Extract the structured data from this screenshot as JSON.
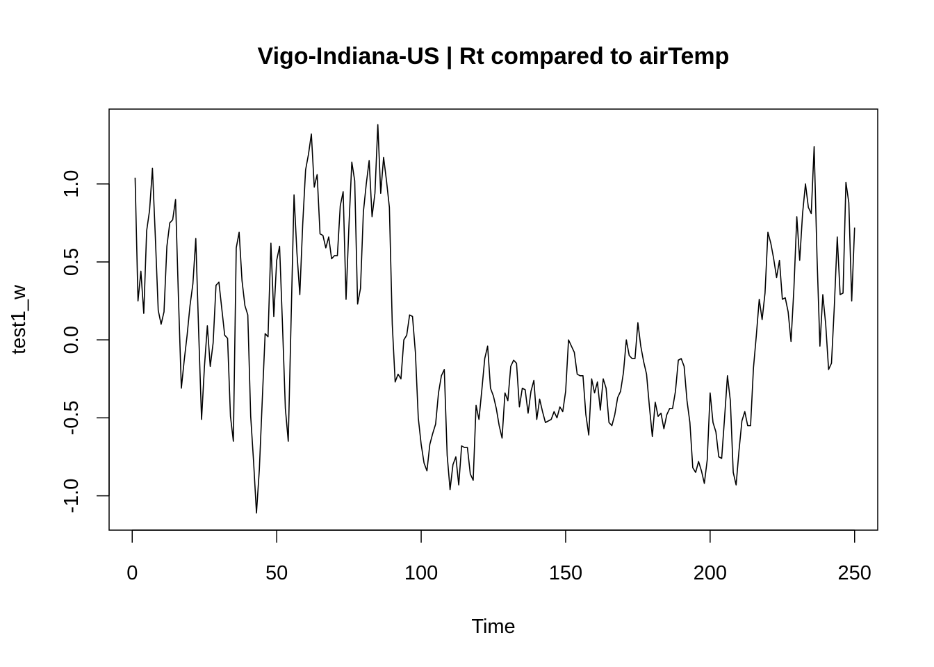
{
  "chart_data": {
    "type": "line",
    "title": "Vigo-Indiana-US | Rt compared to airTemp",
    "xlabel": "Time",
    "ylabel": "test1_w",
    "xlim": [
      -8,
      258
    ],
    "ylim": [
      -1.22,
      1.48
    ],
    "x_ticks": [
      0,
      50,
      100,
      150,
      200,
      250
    ],
    "y_ticks": [
      -1.0,
      -0.5,
      0.0,
      0.5,
      1.0
    ],
    "x_tick_labels": [
      "0",
      "50",
      "100",
      "150",
      "200",
      "250"
    ],
    "y_tick_labels": [
      "-1.0",
      "-0.5",
      "0.0",
      "0.5",
      "1.0"
    ],
    "grid": false,
    "legend": "none",
    "line_color": "#000000",
    "series": [
      {
        "x_start": 1,
        "x_step": 1,
        "values": [
          1.04,
          0.25,
          0.44,
          0.17,
          0.7,
          0.83,
          1.1,
          0.66,
          0.19,
          0.1,
          0.18,
          0.6,
          0.75,
          0.77,
          0.9,
          0.27,
          -0.31,
          -0.13,
          0.03,
          0.22,
          0.36,
          0.65,
          0.05,
          -0.51,
          -0.17,
          0.09,
          -0.17,
          -0.02,
          0.35,
          0.37,
          0.2,
          0.03,
          0.01,
          -0.49,
          -0.65,
          0.59,
          0.69,
          0.38,
          0.22,
          0.16,
          -0.49,
          -0.78,
          -1.11,
          -0.83,
          -0.39,
          0.04,
          0.02,
          0.62,
          0.15,
          0.51,
          0.6,
          0.1,
          -0.44,
          -0.65,
          0.14,
          0.93,
          0.56,
          0.29,
          0.74,
          1.09,
          1.19,
          1.32,
          0.98,
          1.06,
          0.68,
          0.67,
          0.59,
          0.66,
          0.52,
          0.54,
          0.54,
          0.86,
          0.95,
          0.26,
          0.73,
          1.14,
          1.02,
          0.23,
          0.33,
          0.82,
          1.0,
          1.15,
          0.79,
          0.94,
          1.38,
          0.94,
          1.17,
          1.02,
          0.85,
          0.1,
          -0.27,
          -0.22,
          -0.25,
          0.0,
          0.03,
          0.16,
          0.15,
          -0.08,
          -0.5,
          -0.67,
          -0.79,
          -0.84,
          -0.67,
          -0.6,
          -0.54,
          -0.34,
          -0.23,
          -0.19,
          -0.74,
          -0.96,
          -0.8,
          -0.75,
          -0.93,
          -0.68,
          -0.69,
          -0.69,
          -0.86,
          -0.9,
          -0.42,
          -0.51,
          -0.32,
          -0.12,
          -0.04,
          -0.31,
          -0.36,
          -0.44,
          -0.55,
          -0.63,
          -0.34,
          -0.39,
          -0.17,
          -0.13,
          -0.15,
          -0.43,
          -0.31,
          -0.32,
          -0.47,
          -0.33,
          -0.26,
          -0.51,
          -0.38,
          -0.46,
          -0.53,
          -0.52,
          -0.51,
          -0.46,
          -0.5,
          -0.43,
          -0.46,
          -0.33,
          0.0,
          -0.04,
          -0.08,
          -0.22,
          -0.23,
          -0.23,
          -0.48,
          -0.61,
          -0.25,
          -0.34,
          -0.27,
          -0.45,
          -0.25,
          -0.31,
          -0.53,
          -0.55,
          -0.48,
          -0.37,
          -0.33,
          -0.21,
          0.0,
          -0.1,
          -0.12,
          -0.12,
          0.11,
          -0.04,
          -0.14,
          -0.22,
          -0.43,
          -0.62,
          -0.4,
          -0.49,
          -0.47,
          -0.57,
          -0.48,
          -0.44,
          -0.44,
          -0.33,
          -0.13,
          -0.12,
          -0.17,
          -0.39,
          -0.53,
          -0.82,
          -0.85,
          -0.78,
          -0.84,
          -0.92,
          -0.77,
          -0.34,
          -0.53,
          -0.59,
          -0.75,
          -0.76,
          -0.5,
          -0.23,
          -0.39,
          -0.85,
          -0.93,
          -0.71,
          -0.52,
          -0.46,
          -0.55,
          -0.55,
          -0.18,
          0.03,
          0.26,
          0.13,
          0.3,
          0.69,
          0.62,
          0.52,
          0.4,
          0.51,
          0.26,
          0.27,
          0.18,
          -0.01,
          0.33,
          0.79,
          0.51,
          0.81,
          1.0,
          0.85,
          0.81,
          1.24,
          0.53,
          -0.04,
          0.29,
          0.1,
          -0.19,
          -0.15,
          0.22,
          0.66,
          0.29,
          0.3,
          1.01,
          0.88,
          0.25,
          0.72
        ]
      }
    ]
  }
}
